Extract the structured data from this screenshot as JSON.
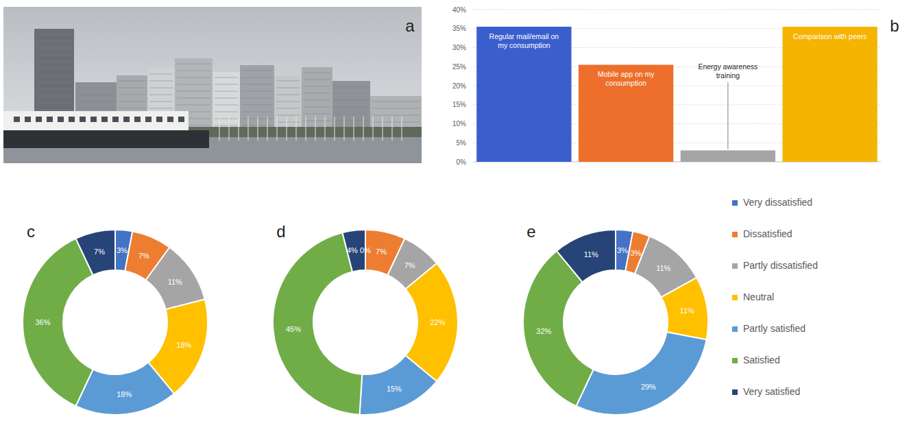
{
  "photo": {
    "label": "a"
  },
  "chart_data": [
    {
      "panel": "b",
      "type": "bar",
      "categories": [
        "Regular mail/email on my consumption",
        "Mobile app on my consumption",
        "Energy awareness training",
        "Comparison with peers"
      ],
      "values": [
        35.5,
        25.5,
        3,
        35.5
      ],
      "colors": [
        "#3a5fcd",
        "#ed6f2b",
        "#a5a5a5",
        "#f5b400"
      ],
      "ylim": [
        0,
        40
      ],
      "yticks": [
        {
          "value": 0,
          "label": "0%"
        },
        {
          "value": 5,
          "label": "5%"
        },
        {
          "value": 10,
          "label": "10%"
        },
        {
          "value": 15,
          "label": "15%"
        },
        {
          "value": 20,
          "label": "20%"
        },
        {
          "value": 25,
          "label": "25%"
        },
        {
          "value": 30,
          "label": "30%"
        },
        {
          "value": 35,
          "label": "35%"
        },
        {
          "value": 40,
          "label": "40%"
        }
      ],
      "grid": true
    },
    {
      "panel": "c",
      "type": "pie",
      "values": [
        3,
        7,
        11,
        18,
        18,
        36,
        7
      ],
      "value_labels": [
        "3%",
        "7%",
        "11%",
        "18%",
        "18%",
        "36%",
        "7%"
      ],
      "data_labels": true
    },
    {
      "panel": "d",
      "type": "pie",
      "values": [
        0,
        7,
        7,
        22,
        15,
        45,
        4
      ],
      "value_labels": [
        "0%",
        "7%",
        "7%",
        "22%",
        "15%",
        "45%",
        "4%"
      ],
      "data_labels": true
    },
    {
      "panel": "e",
      "type": "pie",
      "values": [
        3,
        3,
        11,
        11,
        29,
        32,
        11
      ],
      "value_labels": [
        "3%",
        "3%",
        "11%",
        "11%",
        "29%",
        "32%",
        "11%"
      ],
      "data_labels": true
    }
  ],
  "shared_legend": {
    "categories": [
      "Very dissatisfied",
      "Dissatisfied",
      "Partly dissatisfied",
      "Neutral",
      "Partly satisfied",
      "Satisfied",
      "Very satisfied"
    ],
    "colors": [
      "#4472c4",
      "#ed7d31",
      "#a5a5a5",
      "#ffc000",
      "#5b9bd5",
      "#70ad47",
      "#264478"
    ]
  }
}
